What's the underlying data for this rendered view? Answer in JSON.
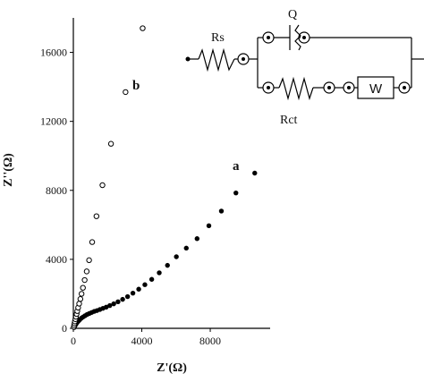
{
  "chart_data": {
    "type": "scatter",
    "xlabel": "Z'(Ω)",
    "ylabel": "Z''(Ω)",
    "xlim": [
      0,
      11500
    ],
    "ylim": [
      0,
      18000
    ],
    "x_ticks": [
      0,
      4000,
      8000
    ],
    "y_ticks": [
      0,
      4000,
      8000,
      12000,
      16000
    ],
    "grid": false,
    "series": [
      {
        "name": "a",
        "marker": "filled-circle",
        "color": "#000000",
        "x": [
          50,
          80,
          120,
          170,
          230,
          300,
          380,
          470,
          570,
          680,
          800,
          930,
          1070,
          1220,
          1380,
          1550,
          1730,
          1920,
          2130,
          2360,
          2610,
          2880,
          3170,
          3480,
          3820,
          4180,
          4580,
          5020,
          5500,
          6020,
          6600,
          7230,
          7920,
          8650,
          9500,
          10600
        ],
        "y": [
          50,
          120,
          190,
          270,
          350,
          430,
          510,
          590,
          660,
          730,
          800,
          860,
          920,
          980,
          1030,
          1090,
          1160,
          1230,
          1320,
          1420,
          1540,
          1680,
          1840,
          2040,
          2270,
          2530,
          2840,
          3220,
          3650,
          4150,
          4650,
          5200,
          5950,
          6800,
          7850,
          9000
        ]
      },
      {
        "name": "b",
        "marker": "open-circle",
        "color": "#000000",
        "x": [
          30,
          50,
          70,
          90,
          120,
          150,
          190,
          230,
          280,
          340,
          410,
          480,
          560,
          660,
          780,
          920,
          1100,
          1350,
          1700,
          2200,
          3050,
          4050
        ],
        "y": [
          80,
          180,
          290,
          400,
          530,
          670,
          830,
          1000,
          1200,
          1430,
          1700,
          2000,
          2350,
          2800,
          3300,
          3950,
          5000,
          6500,
          8300,
          10700,
          13700,
          17400
        ]
      }
    ]
  },
  "inset": {
    "labels": {
      "rs": "Rs",
      "q": "Q",
      "rct": "Rct",
      "w": "W"
    }
  }
}
